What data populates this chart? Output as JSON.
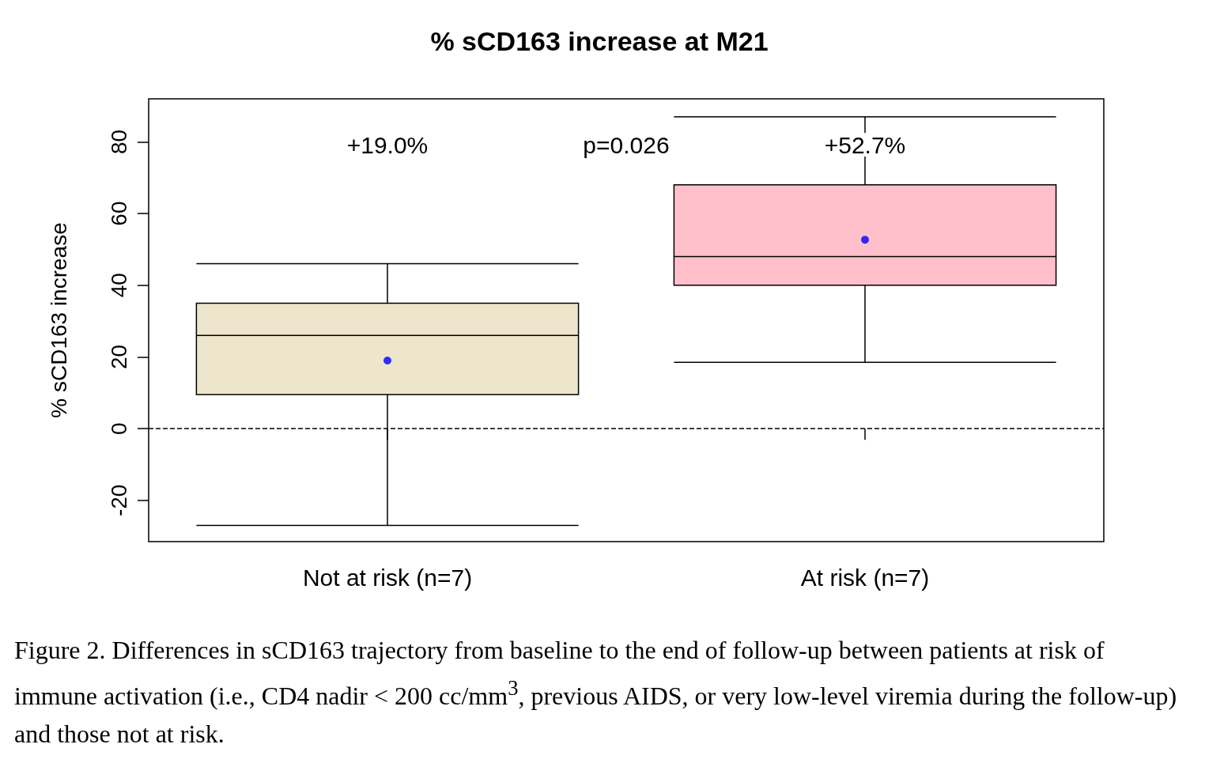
{
  "chart_data": {
    "type": "box",
    "title": "% sCD163 increase at M21",
    "ylabel": "% sCD163 increase",
    "categories": [
      "Not at risk (n=7)",
      "At risk (n=7)"
    ],
    "colors": [
      "#eee6cc",
      "#ffc0cb"
    ],
    "boxes": [
      {
        "low": -27,
        "q1": 9.5,
        "median": 26,
        "q3": 35,
        "high": 46,
        "mean": 19.0
      },
      {
        "low": 18.5,
        "q1": 40,
        "median": 48,
        "q3": 68,
        "high": 87,
        "mean": 52.7
      }
    ],
    "ylim": [
      -31.5,
      92
    ],
    "yticks": [
      -20,
      0,
      20,
      40,
      60,
      80
    ],
    "grid": false,
    "ref_lines": [
      {
        "axis": "y",
        "value": 0,
        "line_style": "dashed",
        "color": "#000000"
      }
    ],
    "annotations": [
      "+19.0%",
      "+52.7%",
      "p=0.026",
      "Figure 2. Differences in sCD163 trajectory from baseline to the end of follow-up between patients at risk of immune activation (i.e., CD4 nadir < 200 cc/mm$^{3}$, previous AIDS, or very low-level viremia during the follow-up) and those not at risk."
    ]
  }
}
